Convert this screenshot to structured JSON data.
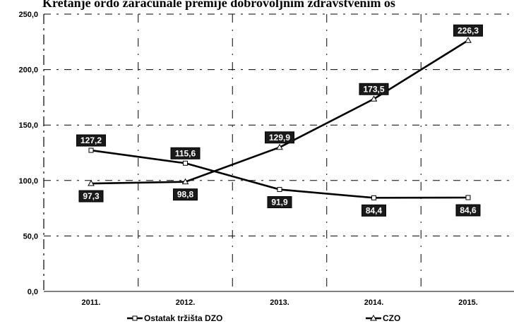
{
  "title": "Kretanje ordo zaračunale premije dobrovoljnim zdravstvenim os",
  "chart_data": {
    "type": "line",
    "categories": [
      "2011.",
      "2012.",
      "2013.",
      "2014.",
      "2015."
    ],
    "ylim": [
      0,
      250
    ],
    "yticks": [
      "0,0",
      "50,0",
      "100,0",
      "150,0",
      "200,0",
      "250,0"
    ],
    "grid": true,
    "legend_position": "bottom",
    "series": [
      {
        "name": "Ostatak tržišta DZO",
        "values": [
          127.2,
          115.6,
          91.9,
          84.4,
          84.6
        ],
        "labels": [
          "127,2",
          "115,6",
          "91,9",
          "84,4",
          "84,6"
        ],
        "color": "#000000"
      },
      {
        "name": "CZO",
        "values": [
          97.3,
          98.8,
          129.9,
          173.5,
          226.3
        ],
        "labels": [
          "97,3",
          "98,8",
          "129,9",
          "173,5",
          "226,3"
        ],
        "color": "#000000"
      }
    ]
  }
}
